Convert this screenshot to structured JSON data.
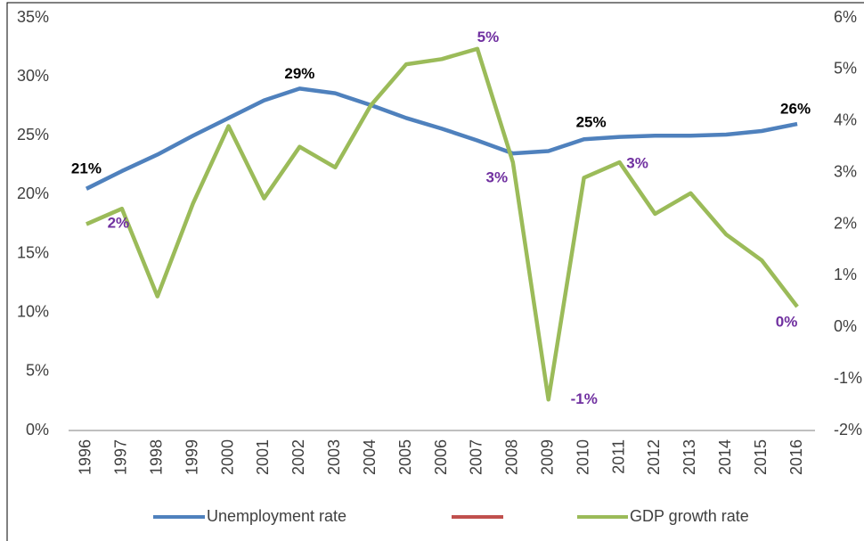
{
  "chart_data": {
    "type": "line",
    "categories": [
      "1996",
      "1997",
      "1998",
      "1999",
      "2000",
      "2001",
      "2002",
      "2003",
      "2004",
      "2005",
      "2006",
      "2007",
      "2008",
      "2009",
      "2010",
      "2011",
      "2012",
      "2013",
      "2014",
      "2015",
      "2016"
    ],
    "series": [
      {
        "name": "Unemployment rate",
        "color": "#4f81bd",
        "axis": "y",
        "values": [
          20.5,
          22.0,
          23.4,
          25.0,
          26.5,
          28.0,
          29.0,
          28.6,
          27.6,
          26.5,
          25.6,
          24.6,
          23.5,
          23.7,
          24.7,
          24.9,
          25.0,
          25.0,
          25.1,
          25.4,
          26.0
        ],
        "value_labels": [
          "21%",
          null,
          null,
          null,
          null,
          null,
          "29%",
          null,
          null,
          null,
          null,
          null,
          null,
          null,
          "25%",
          null,
          null,
          null,
          null,
          null,
          "26%"
        ],
        "label_color": "#000000"
      },
      {
        "name": "GDP growth rate",
        "color": "#9bbb59",
        "axis": "y2",
        "values": [
          2.0,
          2.3,
          0.6,
          2.4,
          3.9,
          2.5,
          3.5,
          3.1,
          4.3,
          5.1,
          5.2,
          5.4,
          3.2,
          -1.4,
          2.9,
          3.2,
          2.2,
          2.6,
          1.8,
          1.3,
          0.4
        ],
        "value_labels": [
          null,
          "2%",
          null,
          null,
          null,
          null,
          null,
          null,
          null,
          null,
          null,
          "5%",
          "3%",
          "-1%",
          null,
          "3%",
          null,
          null,
          null,
          null,
          "0%"
        ],
        "label_color": "#7030a0"
      }
    ],
    "ylim": [
      0,
      35
    ],
    "yticks": [
      {
        "value": 0,
        "label": "0%"
      },
      {
        "value": 5,
        "label": "5%"
      },
      {
        "value": 10,
        "label": "10%"
      },
      {
        "value": 15,
        "label": "15%"
      },
      {
        "value": 20,
        "label": "20%"
      },
      {
        "value": 25,
        "label": "25%"
      },
      {
        "value": 30,
        "label": "30%"
      },
      {
        "value": 35,
        "label": "35%"
      }
    ],
    "y2lim": [
      -2,
      6
    ],
    "y2ticks": [
      {
        "value": -2,
        "label": "-2%"
      },
      {
        "value": -1,
        "label": "-1%"
      },
      {
        "value": 0,
        "label": "0%"
      },
      {
        "value": 1,
        "label": "1%"
      },
      {
        "value": 2,
        "label": "2%"
      },
      {
        "value": 3,
        "label": "3%"
      },
      {
        "value": 4,
        "label": "4%"
      },
      {
        "value": 5,
        "label": "5%"
      },
      {
        "value": 6,
        "label": "6%"
      }
    ],
    "legend": "bottom"
  }
}
